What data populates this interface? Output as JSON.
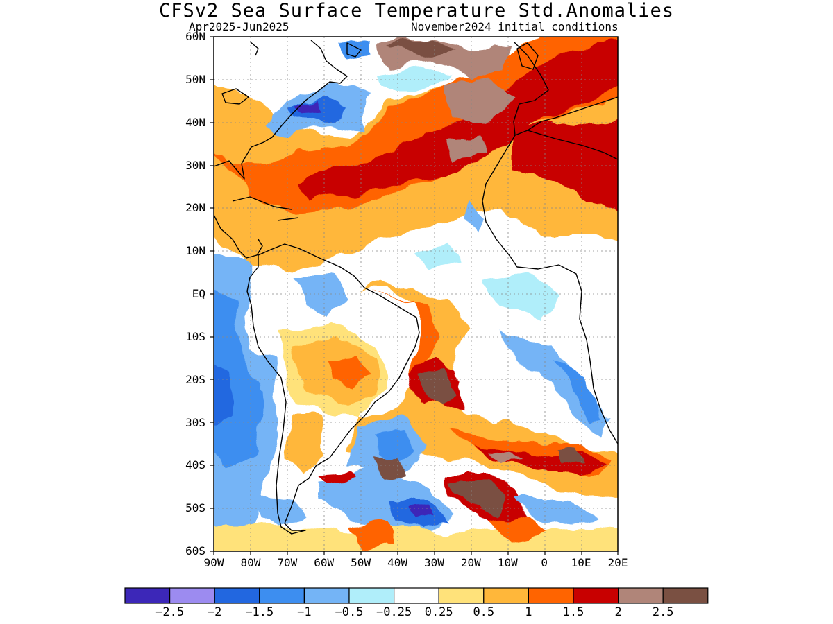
{
  "title": "CFSv2 Sea Surface Temperature Std.Anomalies",
  "subtitle_left": "Apr2025-Jun2025",
  "subtitle_right": "November2024 initial conditions",
  "latitude_labels": [
    "60N",
    "50N",
    "40N",
    "30N",
    "20N",
    "10N",
    "EQ",
    "10S",
    "20S",
    "30S",
    "40S",
    "50S",
    "60S"
  ],
  "longitude_labels": [
    "90W",
    "80W",
    "70W",
    "60W",
    "50W",
    "40W",
    "30W",
    "20W",
    "10W",
    "0",
    "10E",
    "20E"
  ],
  "extent": {
    "lon": [
      -90,
      20
    ],
    "lat": [
      -60,
      60
    ]
  },
  "colorbar": {
    "colors": [
      "#3c27b8",
      "#9c8bf0",
      "#2267e0",
      "#3d8ef0",
      "#74b4f6",
      "#b0eefa",
      "#ffffff",
      "#ffe27a",
      "#ffb73a",
      "#ff6400",
      "#c80000",
      "#b08579",
      "#7a5042"
    ],
    "labels": [
      "-2.5",
      "-2",
      "-1.5",
      "-1",
      "-0.5",
      "-0.25",
      "0.25",
      "0.5",
      "1",
      "1.5",
      "2",
      "2.5"
    ]
  }
}
